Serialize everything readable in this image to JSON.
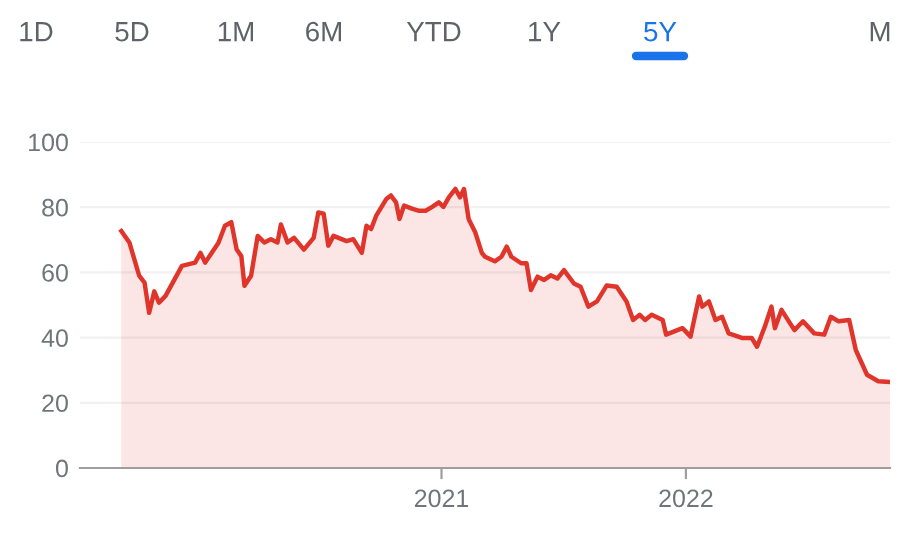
{
  "chart_data": {
    "type": "area",
    "color": "#e0352b",
    "annotations": [
      "1D",
      "5D",
      "1M",
      "6M",
      "YTD",
      "1Y",
      "5Y",
      "M"
    ],
    "x": [
      2019.69,
      2019.723,
      2019.763,
      2019.785,
      2019.804,
      2019.825,
      2019.844,
      2019.871,
      2019.938,
      2019.992,
      2020.014,
      2020.033,
      2020.087,
      2020.114,
      2020.14,
      2020.162,
      2020.181,
      2020.194,
      2020.221,
      2020.248,
      2020.275,
      2020.302,
      2020.329,
      2020.343,
      2020.37,
      2020.397,
      2020.437,
      2020.477,
      2020.496,
      2020.518,
      2020.537,
      2020.558,
      2020.612,
      2020.639,
      2020.674,
      2020.693,
      2020.712,
      2020.733,
      2020.774,
      2020.793,
      2020.814,
      2020.828,
      2020.847,
      2020.882,
      2020.909,
      2020.935,
      2020.962,
      2020.989,
      2021.008,
      2021.03,
      2021.057,
      2021.076,
      2021.092,
      2021.111,
      2021.138,
      2021.165,
      2021.178,
      2021.218,
      2021.245,
      2021.267,
      2021.286,
      2021.326,
      2021.348,
      2021.366,
      2021.393,
      2021.42,
      2021.447,
      2021.474,
      2021.501,
      2021.542,
      2021.569,
      2021.601,
      2021.636,
      2021.676,
      2021.717,
      2021.757,
      2021.784,
      2021.811,
      2021.833,
      2021.86,
      2021.905,
      2021.919,
      2021.986,
      2022.019,
      2022.054,
      2022.067,
      2022.094,
      2022.121,
      2022.148,
      2022.175,
      2022.229,
      2022.269,
      2022.291,
      2022.323,
      2022.35,
      2022.364,
      2022.391,
      2022.444,
      2022.479,
      2022.525,
      2022.566,
      2022.593,
      2022.625,
      2022.668,
      2022.695,
      2022.741,
      2022.787,
      2022.835
    ],
    "values": [
      72.7,
      69.2,
      59,
      56.9,
      47.6,
      54.2,
      50.7,
      52.8,
      62,
      63,
      66,
      63,
      69,
      74.3,
      75.4,
      67,
      65,
      55.9,
      59,
      71.2,
      69.2,
      70.2,
      69.2,
      74.7,
      69.2,
      70.6,
      67,
      70.6,
      78.4,
      78,
      68.2,
      71.2,
      69.6,
      70.2,
      66,
      74.3,
      73.3,
      77.4,
      82.5,
      83.6,
      81.5,
      76.4,
      80.5,
      79.5,
      78.9,
      78.9,
      80.1,
      81.5,
      80.1,
      83,
      85.6,
      83,
      85.6,
      76.4,
      72.3,
      66,
      64.8,
      63.4,
      64.8,
      67.9,
      64.8,
      62.8,
      62.8,
      54.6,
      58.7,
      57.7,
      59.1,
      58.1,
      60.7,
      56.6,
      55.6,
      49.5,
      51.1,
      56,
      55.6,
      51.1,
      45.4,
      47,
      45.4,
      47,
      45.4,
      40.9,
      42.9,
      40.3,
      52.6,
      49.5,
      51.1,
      45.4,
      46.4,
      41.3,
      39.9,
      39.9,
      37.2,
      43.4,
      49.5,
      42.9,
      48.5,
      42.3,
      45,
      41.3,
      40.9,
      46.4,
      45,
      45.4,
      36.2,
      28.6,
      26.6,
      26.4
    ],
    "xlim": [
      2019.521,
      2022.835
    ],
    "xticks": [
      2021,
      2022
    ],
    "ylim": [
      0,
      100
    ],
    "yticks": [
      0,
      20,
      40,
      60,
      80,
      100
    ],
    "grid": "y",
    "legend": false
  }
}
